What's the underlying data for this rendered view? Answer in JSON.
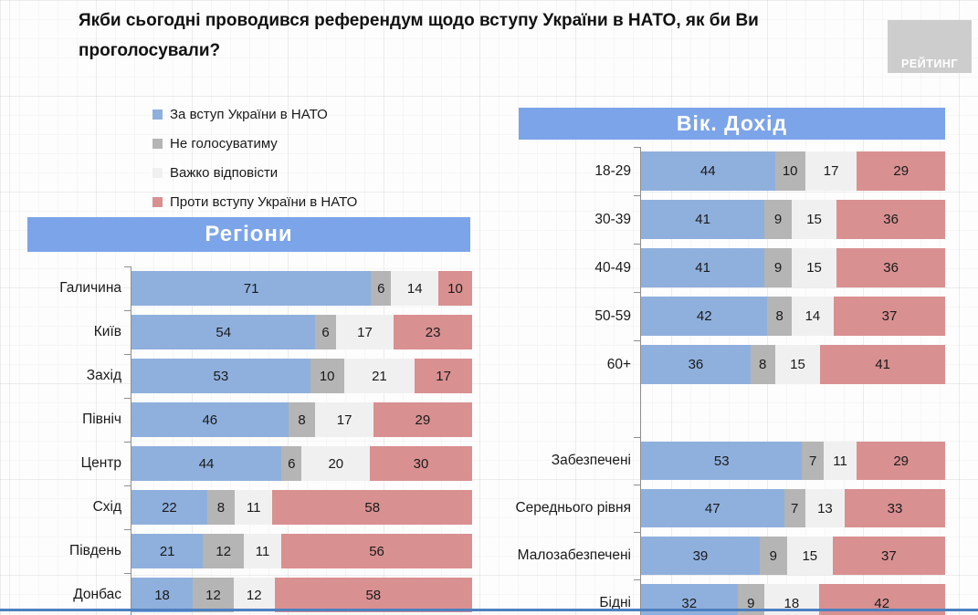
{
  "title": "Якби сьогодні проводився референдум щодо вступу України в НАТО, як би Ви проголосували?",
  "logo_text": "РЕЙТИНГ",
  "colors": {
    "for": "#8fb0dd",
    "wont_vote": "#b5b5b5",
    "hard_to_say": "#f1f0f1",
    "against": "#d99091",
    "header_blue": "#7ca4e9",
    "bottom_line": "#4d80c0"
  },
  "legend": [
    {
      "key": "for-nato",
      "label": "За вступ України в НАТО",
      "color": "#8fb0dd"
    },
    {
      "key": "wont-vote",
      "label": "Не голосуватиму",
      "color": "#b5b5b5"
    },
    {
      "key": "hard-to-say",
      "label": "Важко відповісти",
      "color": "#f1f0f1"
    },
    {
      "key": "against-nato",
      "label": "Проти вступу України в НАТО",
      "color": "#d99091"
    }
  ],
  "chart_data": [
    {
      "type": "bar",
      "title": "Регіони",
      "orientation": "horizontal",
      "stacked_percent": true,
      "series_names": [
        "За вступ України в НАТО",
        "Не голосуватиму",
        "Важко відповісти",
        "Проти вступу України в НАТО"
      ],
      "groups": [
        {
          "categories": [
            "Галичина",
            "Київ",
            "Захід",
            "Північ",
            "Центр",
            "Схід",
            "Південь",
            "Донбас"
          ],
          "rows": [
            [
              71,
              6,
              14,
              10
            ],
            [
              54,
              6,
              17,
              23
            ],
            [
              53,
              10,
              21,
              17
            ],
            [
              46,
              8,
              17,
              29
            ],
            [
              44,
              6,
              20,
              30
            ],
            [
              22,
              8,
              11,
              58
            ],
            [
              21,
              12,
              11,
              56
            ],
            [
              18,
              12,
              12,
              58
            ]
          ]
        }
      ]
    },
    {
      "type": "bar",
      "title": "Вік. Дохід",
      "orientation": "horizontal",
      "stacked_percent": true,
      "series_names": [
        "За вступ України в НАТО",
        "Не голосуватиму",
        "Важко відповісти",
        "Проти вступу України в НАТО"
      ],
      "groups": [
        {
          "categories": [
            "18-29",
            "30-39",
            "40-49",
            "50-59",
            "60+"
          ],
          "rows": [
            [
              44,
              10,
              17,
              29
            ],
            [
              41,
              9,
              15,
              36
            ],
            [
              41,
              9,
              15,
              36
            ],
            [
              42,
              8,
              14,
              37
            ],
            [
              36,
              8,
              15,
              41
            ]
          ]
        },
        {
          "categories": [
            "Забезпечені",
            "Середнього рівня",
            "Малозабезпечені",
            "Бідні"
          ],
          "rows": [
            [
              53,
              7,
              11,
              29
            ],
            [
              47,
              7,
              13,
              33
            ],
            [
              39,
              9,
              15,
              37
            ],
            [
              32,
              9,
              18,
              42
            ]
          ]
        }
      ]
    }
  ]
}
